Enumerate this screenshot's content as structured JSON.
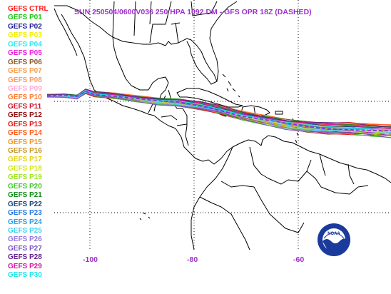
{
  "title": "SUN 250504/0600V036  250 HPA 1092 DM - GFS OPR 18Z (DASHED)",
  "legend": [
    {
      "label": "GEFS CTRL",
      "color": "#ff1a1a"
    },
    {
      "label": "GEFS P01",
      "color": "#19c80f"
    },
    {
      "label": "GEFS P02",
      "color": "#1a1a96"
    },
    {
      "label": "GEFS P03",
      "color": "#f0f000"
    },
    {
      "label": "GEFS P04",
      "color": "#2ee6f0"
    },
    {
      "label": "GEFS P05",
      "color": "#ee22dd"
    },
    {
      "label": "GEFS P06",
      "color": "#8c5a28"
    },
    {
      "label": "GEFS P07",
      "color": "#f5a050"
    },
    {
      "label": "GEFS P08",
      "color": "#ff9a6a"
    },
    {
      "label": "GEFS P09",
      "color": "#ffaad2"
    },
    {
      "label": "GEFS P10",
      "color": "#ff7a2a"
    },
    {
      "label": "GEFS P11",
      "color": "#c8142a"
    },
    {
      "label": "GEFS P12",
      "color": "#8c0a0a"
    },
    {
      "label": "GEFS P13",
      "color": "#e61414"
    },
    {
      "label": "GEFS P14",
      "color": "#ff5a1a"
    },
    {
      "label": "GEFS P15",
      "color": "#f0961e"
    },
    {
      "label": "GEFS P16",
      "color": "#c89628"
    },
    {
      "label": "GEFS P17",
      "color": "#e6d214"
    },
    {
      "label": "GEFS P18",
      "color": "#d2e614"
    },
    {
      "label": "GEFS P19",
      "color": "#9ae61e"
    },
    {
      "label": "GEFS P20",
      "color": "#3cc828"
    },
    {
      "label": "GEFS P21",
      "color": "#148c1e"
    },
    {
      "label": "GEFS P22",
      "color": "#14467a"
    },
    {
      "label": "GEFS P23",
      "color": "#2878dc"
    },
    {
      "label": "GEFS P24",
      "color": "#28a0f0"
    },
    {
      "label": "GEFS P25",
      "color": "#3cd2f5"
    },
    {
      "label": "GEFS P26",
      "color": "#9678dc"
    },
    {
      "label": "GEFS P27",
      "color": "#7850c8"
    },
    {
      "label": "GEFS P28",
      "color": "#641e8c"
    },
    {
      "label": "GEFS P29",
      "color": "#dc14a0"
    },
    {
      "label": "GEFS P30",
      "color": "#1ee6e6"
    }
  ],
  "longitude_labels": [
    "-100",
    "-80",
    "-60"
  ],
  "colors": {
    "title": "#9b30c9",
    "land_outline": "#000000",
    "gridline": "#000000",
    "noaa_blue": "#1a3a9c"
  },
  "logo": {
    "text": "NOAA",
    "icon": "noaa-logo-icon"
  }
}
